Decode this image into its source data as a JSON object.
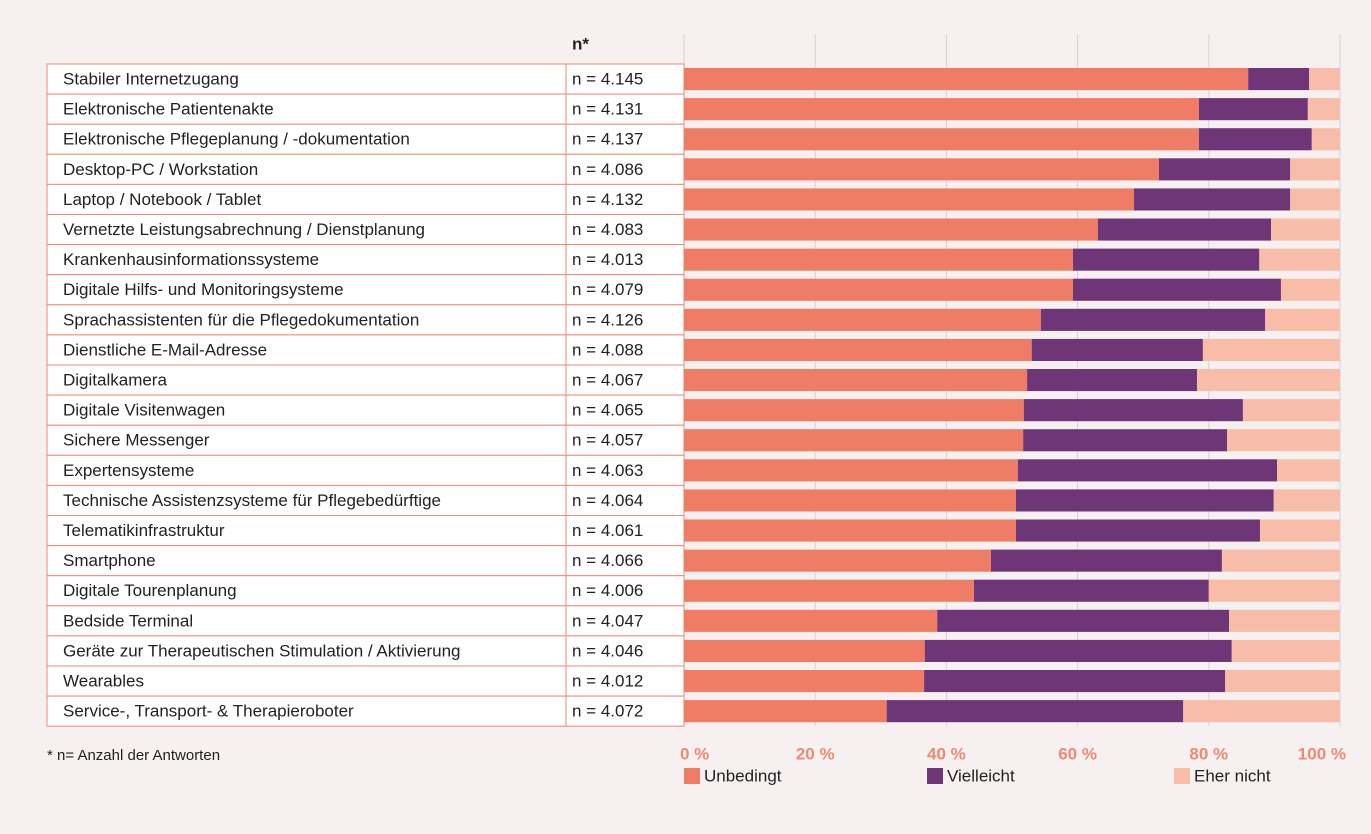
{
  "chart_data": {
    "type": "stacked_bar",
    "n_header": "n*",
    "footnote": "* n= Anzahl der Antworten",
    "categories": [
      "Stabiler Internetzugang",
      "Elektronische Patientenakte",
      "Elektronische Pflegeplanung / -dokumentation",
      "Desktop-PC / Workstation",
      "Laptop / Notebook / Tablet",
      "Vernetzte Leistungsabrechnung / Dienstplanung",
      "Krankenhausinformationssysteme",
      "Digitale Hilfs- und Monitoringsysteme",
      "Sprachassistenten für die Pflegedokumentation",
      "Dienstliche E-Mail-Adresse",
      "Digitalkamera",
      "Digitale Visitenwagen",
      "Sichere Messenger",
      "Expertensysteme",
      "Technische Assistenzsysteme für Pflegebedürftige",
      "Telematikinfrastruktur",
      "Smartphone",
      "Digitale Tourenplanung",
      "Bedside Terminal",
      "Geräte zur Therapeutischen Stimulation / Aktivierung",
      "Wearables",
      "Service-, Transport- & Therapieroboter"
    ],
    "n_labels": [
      "n = 4.145",
      "n = 4.131",
      "n = 4.137",
      "n = 4.086",
      "n = 4.132",
      "n = 4.083",
      "n = 4.013",
      "n = 4.079",
      "n = 4.126",
      "n = 4.088",
      "n = 4.067",
      "n = 4.065",
      "n = 4.057",
      "n = 4.063",
      "n = 4.064",
      "n = 4.061",
      "n = 4.066",
      "n = 4.006",
      "n = 4.047",
      "n = 4.046",
      "n = 4.012",
      "n = 4.072"
    ],
    "series": [
      {
        "name": "Unbedingt",
        "color": "#ef7d66",
        "values": [
          86.0,
          78.5,
          78.5,
          72.4,
          68.6,
          63.1,
          59.3,
          59.3,
          54.4,
          53.0,
          52.3,
          51.8,
          51.7,
          50.9,
          50.6,
          50.6,
          46.8,
          44.2,
          38.6,
          36.7,
          36.6,
          30.9
        ]
      },
      {
        "name": "Vielleicht",
        "color": "#6e3676",
        "values": [
          9.3,
          16.6,
          17.2,
          20.0,
          23.8,
          26.4,
          28.4,
          31.7,
          34.2,
          26.1,
          25.9,
          33.4,
          31.1,
          39.5,
          39.3,
          37.2,
          35.2,
          35.8,
          44.5,
          46.8,
          45.9,
          45.2
        ]
      },
      {
        "name": "Eher nicht",
        "color": "#f8bda8",
        "values": [
          4.7,
          4.9,
          4.3,
          7.6,
          7.6,
          10.5,
          12.3,
          9.0,
          11.4,
          20.9,
          21.8,
          14.8,
          17.2,
          9.6,
          10.1,
          12.2,
          18.0,
          20.0,
          16.9,
          16.5,
          17.5,
          23.9
        ]
      }
    ],
    "xlim": [
      0,
      100
    ],
    "xticks": [
      {
        "value": 0,
        "label": "0 %"
      },
      {
        "value": 20,
        "label": "20 %"
      },
      {
        "value": 40,
        "label": "40 %"
      },
      {
        "value": 60,
        "label": "60 %"
      },
      {
        "value": 80,
        "label": "80 %"
      },
      {
        "value": 100,
        "label": "100 %"
      }
    ],
    "grid": true
  }
}
